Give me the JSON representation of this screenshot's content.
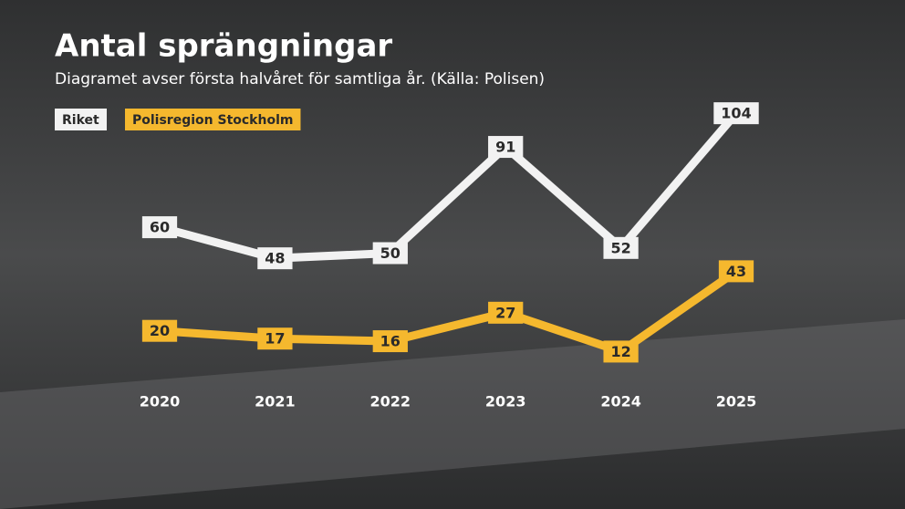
{
  "chart_data": {
    "type": "line",
    "title": "Antal sprängningar",
    "subtitle": "Diagramet avser första halvåret för samtliga år. (Källa: Polisen)",
    "categories": [
      "2020",
      "2021",
      "2022",
      "2023",
      "2024",
      "2025"
    ],
    "series": [
      {
        "name": "Riket",
        "color": "#f2f2f2",
        "values": [
          60,
          48,
          50,
          91,
          52,
          104
        ]
      },
      {
        "name": "Polisregion Stockholm",
        "color": "#f5b82e",
        "values": [
          20,
          17,
          16,
          27,
          12,
          43
        ]
      }
    ]
  }
}
